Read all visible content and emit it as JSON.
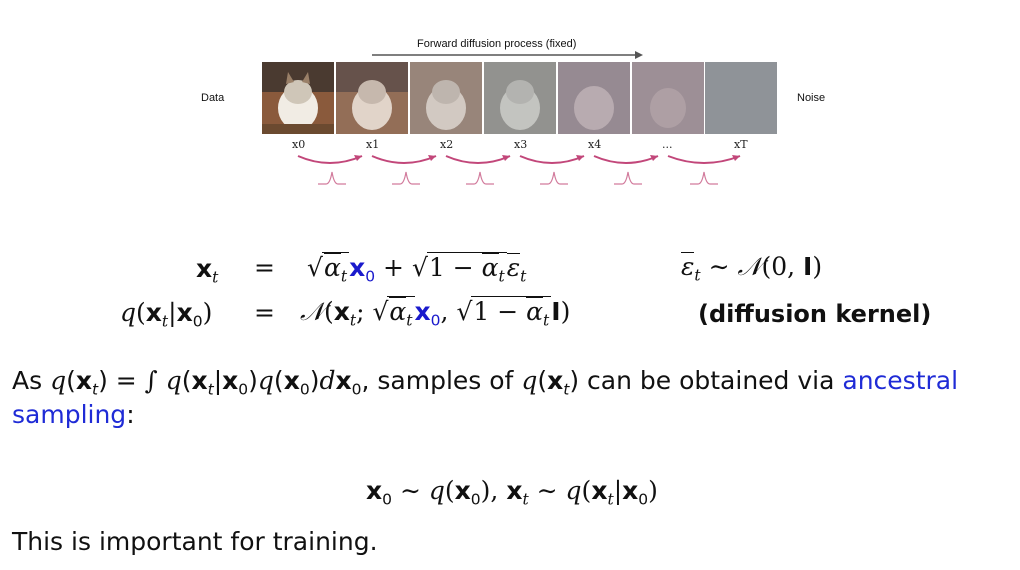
{
  "figure": {
    "title": "Forward diffusion process (fixed)",
    "left_label": "Data",
    "right_label": "Noise",
    "step_labels": [
      "x0",
      "x1",
      "x2",
      "x3",
      "x4",
      "...",
      "xT"
    ]
  },
  "equations": {
    "eq1_lhs": "x_t",
    "eq1_rhs": "√ᾱ_t x0 + √(1 − ᾱ_t) ε̄_t",
    "eq1_side": "ε̄_t ~ N(0, I)",
    "eq2_lhs": "q(x_t|x0)",
    "eq2_rhs": "N(x_t; √ᾱ_t x0, √(1 − ᾱ_t) I)",
    "eq2_side": "(diffusion kernel)"
  },
  "text": {
    "para1_prefix": "As",
    "para1_middle": ", samples of",
    "para1_mid2": "can be obtained via",
    "para1_link": "ancestral sampling",
    "para1_link_a": "ancestral",
    "para1_link_b": "sampling",
    "para1_colon": ":",
    "para2": "This is important for training."
  },
  "colors": {
    "accent_blue": "#1a1acc",
    "arrow_pink": "#c2477a"
  }
}
